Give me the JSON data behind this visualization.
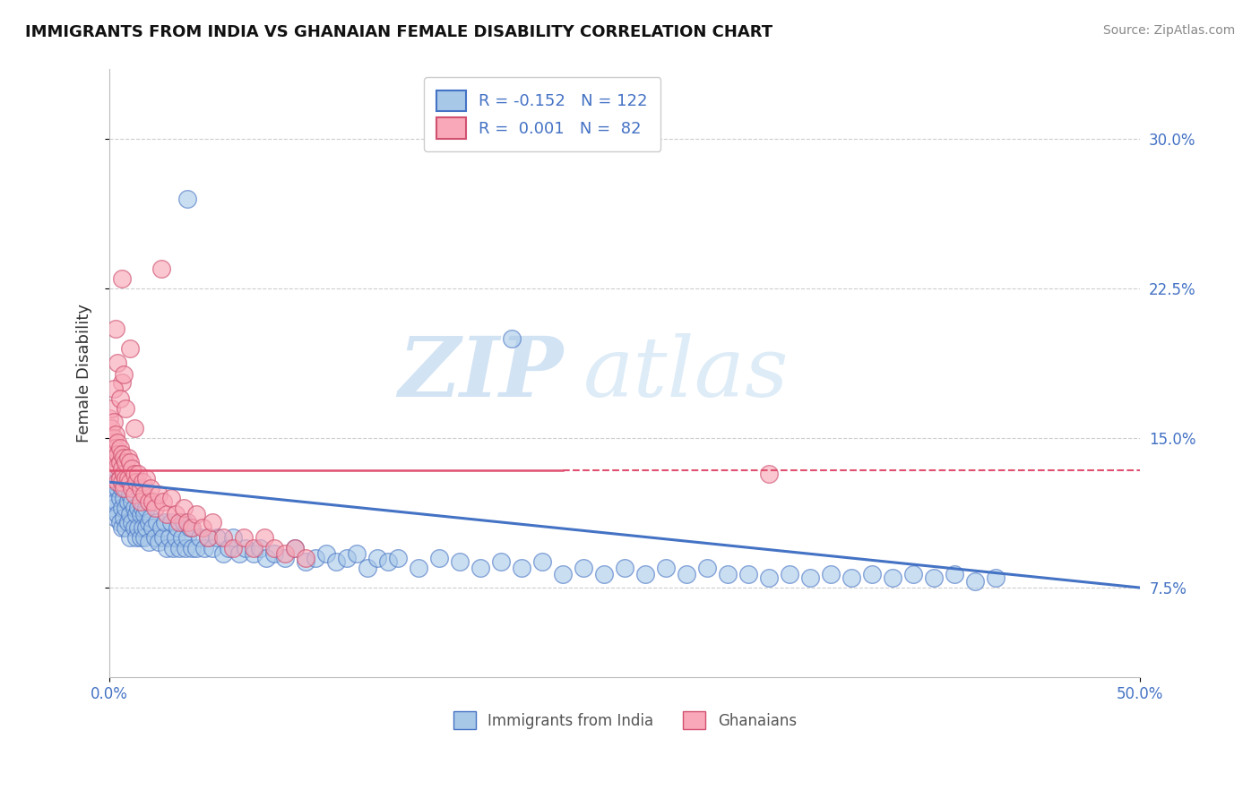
{
  "title": "IMMIGRANTS FROM INDIA VS GHANAIAN FEMALE DISABILITY CORRELATION CHART",
  "source": "Source: ZipAtlas.com",
  "ylabel": "Female Disability",
  "xmin": 0.0,
  "xmax": 0.5,
  "ymin": 0.03,
  "ymax": 0.335,
  "ytick_values": [
    0.075,
    0.15,
    0.225,
    0.3
  ],
  "legend_label1": "Immigrants from India",
  "legend_label2": "Ghanaians",
  "R1": "-0.152",
  "N1": "122",
  "R2": "0.001",
  "N2": "82",
  "scatter_color1": "#a8c8e8",
  "scatter_color2": "#f8a8b8",
  "line_color1": "#4472c4",
  "line_color2": "#e05070",
  "watermark1": "ZIP",
  "watermark2": "atlas",
  "background_color": "#ffffff",
  "grid_color": "#c8c8c8",
  "blue_line_y0": 0.128,
  "blue_line_y1": 0.075,
  "pink_line_y": 0.134,
  "india_x": [
    0.001,
    0.001,
    0.002,
    0.002,
    0.003,
    0.003,
    0.003,
    0.004,
    0.004,
    0.005,
    0.005,
    0.005,
    0.006,
    0.006,
    0.006,
    0.007,
    0.007,
    0.008,
    0.008,
    0.008,
    0.009,
    0.009,
    0.01,
    0.01,
    0.01,
    0.011,
    0.011,
    0.012,
    0.012,
    0.013,
    0.013,
    0.014,
    0.014,
    0.015,
    0.015,
    0.016,
    0.016,
    0.017,
    0.017,
    0.018,
    0.018,
    0.019,
    0.019,
    0.02,
    0.021,
    0.022,
    0.023,
    0.024,
    0.025,
    0.026,
    0.027,
    0.028,
    0.029,
    0.03,
    0.031,
    0.032,
    0.033,
    0.034,
    0.035,
    0.036,
    0.037,
    0.038,
    0.039,
    0.04,
    0.042,
    0.044,
    0.046,
    0.048,
    0.05,
    0.052,
    0.055,
    0.058,
    0.06,
    0.063,
    0.066,
    0.07,
    0.073,
    0.076,
    0.08,
    0.085,
    0.09,
    0.095,
    0.1,
    0.105,
    0.11,
    0.115,
    0.12,
    0.125,
    0.13,
    0.135,
    0.14,
    0.15,
    0.16,
    0.17,
    0.18,
    0.19,
    0.2,
    0.21,
    0.22,
    0.23,
    0.24,
    0.25,
    0.26,
    0.27,
    0.28,
    0.29,
    0.3,
    0.31,
    0.32,
    0.33,
    0.34,
    0.35,
    0.36,
    0.37,
    0.38,
    0.39,
    0.4,
    0.41,
    0.42,
    0.43,
    0.038,
    0.195
  ],
  "india_y": [
    0.13,
    0.12,
    0.125,
    0.115,
    0.128,
    0.118,
    0.11,
    0.125,
    0.112,
    0.13,
    0.12,
    0.108,
    0.125,
    0.115,
    0.105,
    0.12,
    0.11,
    0.125,
    0.115,
    0.105,
    0.118,
    0.108,
    0.122,
    0.112,
    0.1,
    0.118,
    0.108,
    0.115,
    0.105,
    0.112,
    0.1,
    0.115,
    0.105,
    0.112,
    0.1,
    0.115,
    0.105,
    0.112,
    0.1,
    0.115,
    0.105,
    0.108,
    0.098,
    0.11,
    0.105,
    0.1,
    0.108,
    0.098,
    0.105,
    0.1,
    0.108,
    0.095,
    0.1,
    0.108,
    0.095,
    0.1,
    0.105,
    0.095,
    0.1,
    0.108,
    0.095,
    0.1,
    0.105,
    0.095,
    0.095,
    0.1,
    0.095,
    0.1,
    0.095,
    0.1,
    0.092,
    0.095,
    0.1,
    0.092,
    0.095,
    0.092,
    0.095,
    0.09,
    0.092,
    0.09,
    0.095,
    0.088,
    0.09,
    0.092,
    0.088,
    0.09,
    0.092,
    0.085,
    0.09,
    0.088,
    0.09,
    0.085,
    0.09,
    0.088,
    0.085,
    0.088,
    0.085,
    0.088,
    0.082,
    0.085,
    0.082,
    0.085,
    0.082,
    0.085,
    0.082,
    0.085,
    0.082,
    0.082,
    0.08,
    0.082,
    0.08,
    0.082,
    0.08,
    0.082,
    0.08,
    0.082,
    0.08,
    0.082,
    0.078,
    0.08,
    0.27,
    0.2
  ],
  "ghana_x": [
    0.0,
    0.0,
    0.001,
    0.001,
    0.001,
    0.001,
    0.001,
    0.002,
    0.002,
    0.002,
    0.002,
    0.003,
    0.003,
    0.003,
    0.004,
    0.004,
    0.004,
    0.004,
    0.005,
    0.005,
    0.005,
    0.006,
    0.006,
    0.006,
    0.007,
    0.007,
    0.007,
    0.008,
    0.008,
    0.009,
    0.009,
    0.01,
    0.01,
    0.011,
    0.011,
    0.012,
    0.012,
    0.013,
    0.014,
    0.015,
    0.015,
    0.016,
    0.017,
    0.018,
    0.019,
    0.02,
    0.021,
    0.022,
    0.024,
    0.026,
    0.028,
    0.03,
    0.032,
    0.034,
    0.036,
    0.038,
    0.04,
    0.042,
    0.045,
    0.048,
    0.05,
    0.055,
    0.06,
    0.065,
    0.07,
    0.075,
    0.08,
    0.085,
    0.09,
    0.095,
    0.025,
    0.01,
    0.006,
    0.004,
    0.003,
    0.002,
    0.005,
    0.007,
    0.008,
    0.012,
    0.006,
    0.32
  ],
  "ghana_y": [
    0.16,
    0.15,
    0.165,
    0.155,
    0.148,
    0.14,
    0.13,
    0.158,
    0.15,
    0.145,
    0.138,
    0.152,
    0.145,
    0.14,
    0.148,
    0.142,
    0.136,
    0.128,
    0.145,
    0.138,
    0.13,
    0.142,
    0.135,
    0.128,
    0.14,
    0.132,
    0.125,
    0.138,
    0.13,
    0.14,
    0.13,
    0.138,
    0.128,
    0.135,
    0.125,
    0.132,
    0.122,
    0.128,
    0.132,
    0.125,
    0.118,
    0.128,
    0.122,
    0.13,
    0.118,
    0.125,
    0.118,
    0.115,
    0.122,
    0.118,
    0.112,
    0.12,
    0.112,
    0.108,
    0.115,
    0.108,
    0.105,
    0.112,
    0.105,
    0.1,
    0.108,
    0.1,
    0.095,
    0.1,
    0.095,
    0.1,
    0.095,
    0.092,
    0.095,
    0.09,
    0.235,
    0.195,
    0.178,
    0.188,
    0.205,
    0.175,
    0.17,
    0.182,
    0.165,
    0.155,
    0.23,
    0.132
  ]
}
